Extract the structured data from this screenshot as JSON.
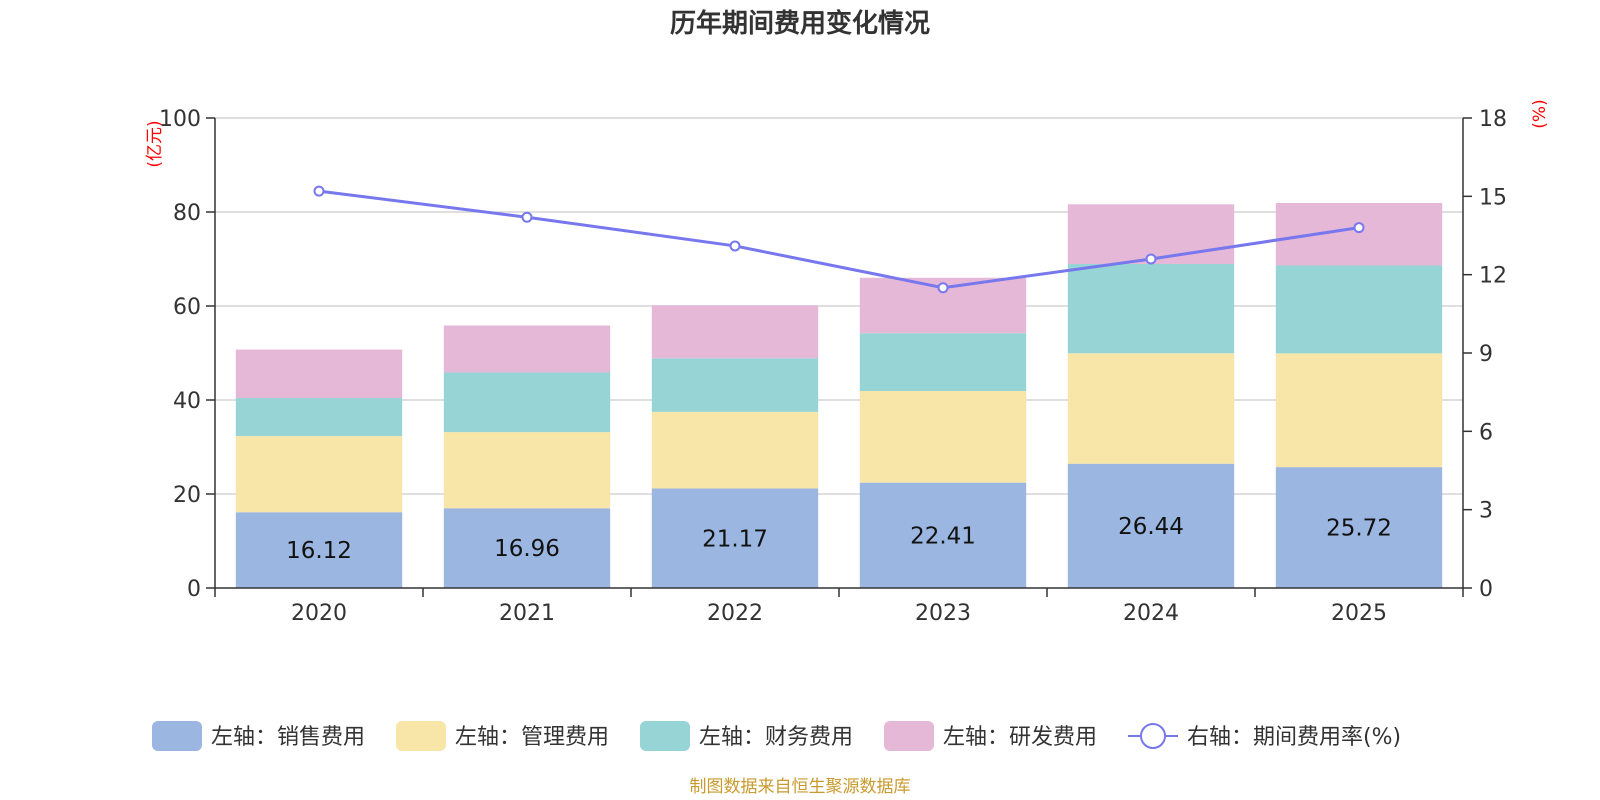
{
  "chart_data": {
    "type": "bar",
    "stacked": true,
    "title": "历年期间费用变化情况",
    "categories": [
      "2020",
      "2021",
      "2022",
      "2023",
      "2024",
      "2025"
    ],
    "series": [
      {
        "name": "左轴：销售费用",
        "axis": "left",
        "type": "bar",
        "color": "#9bb6e0",
        "values": [
          16.12,
          16.96,
          21.17,
          22.41,
          26.44,
          25.72
        ],
        "show_labels": true
      },
      {
        "name": "左轴：管理费用",
        "axis": "left",
        "type": "bar",
        "color": "#f8e6a8",
        "values": [
          16.2,
          16.2,
          16.3,
          19.5,
          23.5,
          24.2
        ],
        "show_labels": false
      },
      {
        "name": "左轴：财务费用",
        "axis": "left",
        "type": "bar",
        "color": "#96d4d6",
        "values": [
          8.1,
          12.7,
          11.4,
          12.3,
          19.0,
          18.7
        ],
        "show_labels": false
      },
      {
        "name": "左轴：研发费用",
        "axis": "left",
        "type": "bar",
        "color": "#e6b8d8",
        "values": [
          10.3,
          10.0,
          11.3,
          11.8,
          12.7,
          13.3
        ],
        "show_labels": false
      },
      {
        "name": "右轴：期间费用率(%)",
        "axis": "right",
        "type": "line",
        "color": "#7777ee",
        "values": [
          15.2,
          14.2,
          13.1,
          11.5,
          12.6,
          13.8
        ],
        "show_labels": false
      }
    ],
    "left_axis": {
      "unit": "(亿元)",
      "min": 0,
      "max": 100,
      "ticks": [
        0,
        20,
        40,
        60,
        80,
        100
      ]
    },
    "right_axis": {
      "unit": "(%)",
      "min": 0,
      "max": 18,
      "ticks": [
        0,
        3,
        6,
        9,
        12,
        15,
        18
      ]
    },
    "grid": true,
    "legend_position": "bottom",
    "source": "制图数据来自恒生聚源数据库"
  }
}
